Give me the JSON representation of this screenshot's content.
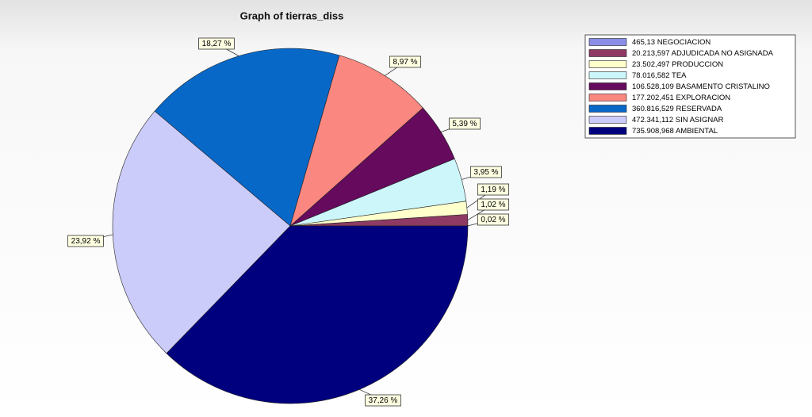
{
  "chart_data": {
    "type": "pie",
    "title": "Graph of tierras_diss",
    "series": [
      {
        "name": "465,13 NEGOCIACION",
        "color": "#8a8ee6"
      },
      {
        "name": "20.213,597 ADJUDICADA NO ASIGNADA",
        "color": "#8e3a64"
      },
      {
        "name": "23.502,497 PRODUCCION",
        "color": "#ffffcc"
      },
      {
        "name": "78.016,582 TEA",
        "color": "#ccf6fa"
      },
      {
        "name": "106.528,109 BASAMENTO CRISTALINO",
        "color": "#660a5e"
      },
      {
        "name": "177.202,451 EXPLORACION",
        "color": "#fa8880"
      },
      {
        "name": "360.816,529 RESERVADA",
        "color": "#0868c8"
      },
      {
        "name": "472.341,112 SIN ASIGNAR",
        "color": "#ccccfa"
      },
      {
        "name": "735.908,968 AMBIENTAL",
        "color": "#00007e"
      }
    ],
    "values": [
      0.02,
      1.02,
      1.19,
      3.95,
      5.39,
      8.97,
      18.27,
      23.92,
      37.26
    ],
    "value_labels": [
      "0,02 %",
      "1,02 %",
      "1,19 %",
      "3,95 %",
      "5,39 %",
      "8,97 %",
      "18,27 %",
      "23,92 %",
      "37,26 %"
    ]
  }
}
